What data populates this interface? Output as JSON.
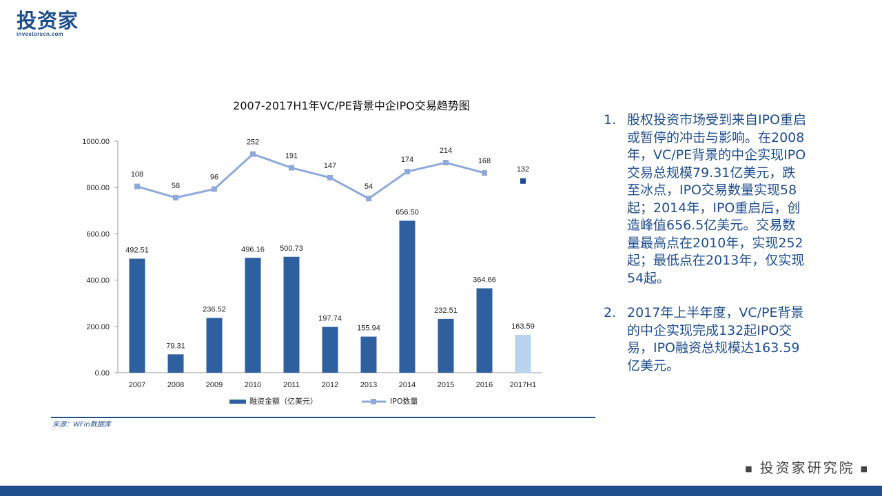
{
  "logo": {
    "cn": "投资家",
    "en": "investorscn.com"
  },
  "chart_data": {
    "type": "bar+line",
    "title": "2007-2017H1年VC/PE背景中企IPO交易趋势图",
    "categories": [
      "2007",
      "2008",
      "2009",
      "2010",
      "2011",
      "2012",
      "2013",
      "2014",
      "2015",
      "2016",
      "2017H1"
    ],
    "series": [
      {
        "name": "融资金额（亿美元）",
        "type": "bar",
        "values": [
          492.51,
          79.31,
          236.52,
          496.16,
          500.73,
          197.74,
          155.94,
          656.5,
          232.51,
          364.66,
          163.59
        ],
        "labels": [
          "492.51",
          "79.31",
          "236.52",
          "496.16",
          "500.73",
          "197.74",
          "155.94",
          "656.50",
          "232.51",
          "364.66",
          "163.59"
        ],
        "color": "#2e5f9e",
        "highlight_last_color": "#b7d3ee"
      },
      {
        "name": "IPO数量",
        "type": "line",
        "values": [
          108,
          58,
          96,
          252,
          191,
          147,
          54,
          174,
          214,
          168,
          132
        ],
        "labels": [
          "108",
          "58",
          "96",
          "252",
          "191",
          "147",
          "54",
          "174",
          "214",
          "168",
          "132"
        ],
        "color": "#8eaadb",
        "last_marker_color": "#1f4e8c"
      }
    ],
    "ylim": [
      0,
      1000
    ],
    "yticks": [
      "0.00",
      "200.00",
      "400.00",
      "600.00",
      "800.00",
      "1000.00"
    ],
    "ytick_values": [
      0,
      200,
      400,
      600,
      800,
      1000
    ],
    "legend": "bottom"
  },
  "source": "来源：WFin数据库",
  "notes": [
    {
      "num": "1.",
      "text": "股权投资市场受到来自IPO重启或暂停的冲击与影响。在2008年，VC/PE背景的中企实现IPO交易总规模79.31亿美元，跌至冰点，IPO交易数量实现58起；2014年，IPO重启后，创造峰值656.5亿美元。交易数量最高点在2010年，实现252起；最低点在2013年，仅实现54起。"
    },
    {
      "num": "2.",
      "text": "2017年上半年度，VC/PE背景的中企实现完成132起IPO交易，IPO融资总规模达163.59亿美元。"
    }
  ],
  "footer": {
    "brand": "投资家研究院",
    "bullet": "■"
  }
}
